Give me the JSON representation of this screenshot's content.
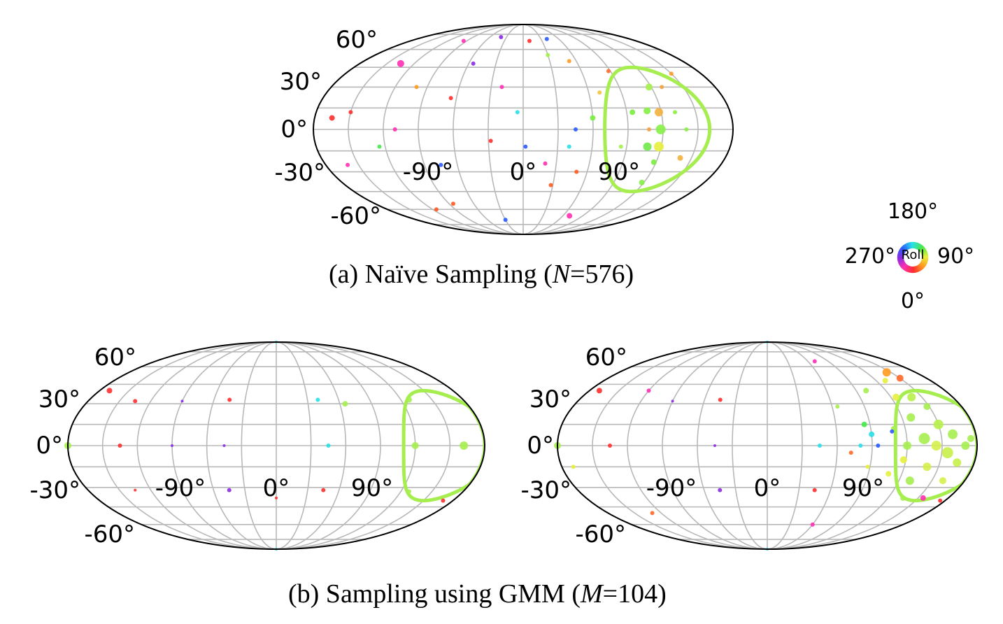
{
  "figure": {
    "caption_a": {
      "prefix": "(a) Naïve Sampling (",
      "var": "N",
      "suffix": "=576)"
    },
    "caption_b": {
      "prefix": "(b) Sampling using GMM (",
      "var": "M",
      "suffix": "=104)"
    }
  },
  "roll_legend": {
    "title": "Roll",
    "labels": {
      "top": "180°",
      "right": "90°",
      "bottom": "0°",
      "left": "270°"
    },
    "colors": [
      "#ff2d2d",
      "#ff9a1f",
      "#e6f03c",
      "#48e84c",
      "#27e0e8",
      "#2a5cff",
      "#8a2be2",
      "#ff2fb2"
    ]
  },
  "colors": {
    "circle": "#a6ee4f",
    "grid": "#b8b8b8",
    "outline": "#000000"
  },
  "chart_data": [
    {
      "id": "naive",
      "type": "scatter",
      "projection": "mollweide",
      "title": "(a) Naïve Sampling (N=576)",
      "lon_ticks": [
        "-90°",
        "0°",
        "90°"
      ],
      "lat_ticks": [
        "60°",
        "30°",
        "0°",
        "-30°",
        "-60°"
      ],
      "grid": true,
      "highlight_circle": {
        "lon": 115,
        "lat": 0,
        "radius_deg": 45,
        "color": "#a6ee4f"
      },
      "points": [
        {
          "lon": 95,
          "lat": 12,
          "size": 4,
          "color": "#7bed3f"
        },
        {
          "lon": 108,
          "lat": 13,
          "size": 5,
          "color": "#83ef43"
        },
        {
          "lon": 118,
          "lat": 12,
          "size": 6,
          "color": "#f2b03c"
        },
        {
          "lon": 108,
          "lat": 0,
          "size": 3,
          "color": "#f2a03c"
        },
        {
          "lon": 118,
          "lat": 0,
          "size": 7,
          "color": "#87ef48"
        },
        {
          "lon": 108,
          "lat": -12,
          "size": 6,
          "color": "#6fe84a"
        },
        {
          "lon": 118,
          "lat": -12,
          "size": 7,
          "color": "#e6f03c"
        },
        {
          "lon": 118,
          "lat": -23,
          "size": 4,
          "color": "#7bed3f"
        },
        {
          "lon": 118,
          "lat": -38,
          "size": 4,
          "color": "#83ef43"
        },
        {
          "lon": 118,
          "lat": 30,
          "size": 5,
          "color": "#a4f04a"
        },
        {
          "lon": 130,
          "lat": 30,
          "size": 3,
          "color": "#f2a03c"
        },
        {
          "lon": 132,
          "lat": 12,
          "size": 3,
          "color": "#8aef44"
        },
        {
          "lon": 140,
          "lat": 0,
          "size": 3,
          "color": "#8aef44"
        },
        {
          "lon": 140,
          "lat": -20,
          "size": 4,
          "color": "#f2b03c"
        },
        {
          "lon": 85,
          "lat": -12,
          "size": 3,
          "color": "#a4f04a"
        },
        {
          "lon": 88,
          "lat": 42,
          "size": 3,
          "color": "#ff6a2a"
        },
        {
          "lon": 70,
          "lat": 26,
          "size": 3,
          "color": "#f2c33c"
        },
        {
          "lon": 60,
          "lat": 8,
          "size": 4,
          "color": "#7bed3f"
        },
        {
          "lon": 45,
          "lat": 0,
          "size": 3,
          "color": "#2a5cff"
        },
        {
          "lon": 40,
          "lat": -12,
          "size": 3,
          "color": "#27e0e8"
        },
        {
          "lon": 50,
          "lat": -30,
          "size": 3,
          "color": "#ff5a1f"
        },
        {
          "lon": 28,
          "lat": -40,
          "size": 3,
          "color": "#ff5a1f"
        },
        {
          "lon": 52,
          "lat": 50,
          "size": 3,
          "color": "#ff9a1f"
        },
        {
          "lon": 30,
          "lat": 55,
          "size": 3,
          "color": "#a4f04a"
        },
        {
          "lon": 10,
          "lat": 68,
          "size": 3,
          "color": "#ff2d2d"
        },
        {
          "lon": -5,
          "lat": 12,
          "size": 3,
          "color": "#27e0e8"
        },
        {
          "lon": 2,
          "lat": -12,
          "size": 3,
          "color": "#2a5cff"
        },
        {
          "lon": 20,
          "lat": -24,
          "size": 3,
          "color": "#ff2fb2"
        },
        {
          "lon": -20,
          "lat": 30,
          "size": 3,
          "color": "#ff2fb2"
        },
        {
          "lon": -28,
          "lat": -8,
          "size": 3,
          "color": "#ff2d2d"
        },
        {
          "lon": -55,
          "lat": 48,
          "size": 3,
          "color": "#8a2be2"
        },
        {
          "lon": -65,
          "lat": 22,
          "size": 3,
          "color": "#ff2d2d"
        },
        {
          "lon": -75,
          "lat": -25,
          "size": 3,
          "color": "#2a5cff"
        },
        {
          "lon": -100,
          "lat": 30,
          "size": 3,
          "color": "#ff9a1f"
        },
        {
          "lon": -110,
          "lat": 0,
          "size": 3,
          "color": "#ff2fb2"
        },
        {
          "lon": -125,
          "lat": -12,
          "size": 3,
          "color": "#48e84c"
        },
        {
          "lon": -150,
          "lat": 12,
          "size": 3,
          "color": "#ff2d2d"
        },
        {
          "lon": -160,
          "lat": -25,
          "size": 3,
          "color": "#ff2fb2"
        },
        {
          "lon": -165,
          "lat": 8,
          "size": 4,
          "color": "#ff2d2d"
        },
        {
          "lon": -135,
          "lat": 48,
          "size": 5,
          "color": "#ff2fb2"
        },
        {
          "lon": -95,
          "lat": 68,
          "size": 3,
          "color": "#ff2fb2"
        },
        {
          "lon": -40,
          "lat": 72,
          "size": 3,
          "color": "#8a2be2"
        },
        {
          "lon": 40,
          "lat": 70,
          "size": 3,
          "color": "#2a5cff"
        },
        {
          "lon": -30,
          "lat": -70,
          "size": 3,
          "color": "#2a5cff"
        },
        {
          "lon": 70,
          "lat": -66,
          "size": 4,
          "color": "#ff2fb2"
        },
        {
          "lon": -115,
          "lat": -60,
          "size": 3,
          "color": "#ff5a1f"
        },
        {
          "lon": 150,
          "lat": 40,
          "size": 3,
          "color": "#ff9a1f"
        },
        {
          "lon": -85,
          "lat": -55,
          "size": 3,
          "color": "#ff5a1f"
        }
      ]
    },
    {
      "id": "gmm-left",
      "type": "scatter",
      "projection": "mollweide",
      "lon_ticks": [
        "-90°",
        "0°",
        "90°"
      ],
      "lat_ticks": [
        "60°",
        "30°",
        "0°",
        "-30°",
        "-60°"
      ],
      "grid": true,
      "highlight_circle": {
        "lon": 150,
        "lat": 0,
        "radius_deg": 40,
        "color": "#a6ee4f"
      },
      "points": [
        {
          "lon": 120,
          "lat": 0,
          "size": 5,
          "color": "#a6ee4f"
        },
        {
          "lon": 162,
          "lat": 0,
          "size": 6,
          "color": "#a6ee4f"
        },
        {
          "lon": 128,
          "lat": 33,
          "size": 4,
          "color": "#a6ee4f"
        },
        {
          "lon": 128,
          "lat": -33,
          "size": 3,
          "color": "#a6ee4f"
        },
        {
          "lon": 65,
          "lat": 30,
          "size": 4,
          "color": "#a6ee4f"
        },
        {
          "lon": 45,
          "lat": 0,
          "size": 3,
          "color": "#27e0e8"
        },
        {
          "lon": 40,
          "lat": 33,
          "size": 3,
          "color": "#27e0e8"
        },
        {
          "lon": 45,
          "lat": -32,
          "size": 3,
          "color": "#ff2d2d"
        },
        {
          "lon": -45,
          "lat": 33,
          "size": 3,
          "color": "#ff2d2d"
        },
        {
          "lon": -45,
          "lat": 0,
          "size": 2,
          "color": "#8a2be2"
        },
        {
          "lon": -45,
          "lat": -32,
          "size": 3,
          "color": "#8a2be2"
        },
        {
          "lon": -90,
          "lat": 0,
          "size": 2,
          "color": "#8a2be2"
        },
        {
          "lon": -90,
          "lat": 32,
          "size": 2,
          "color": "#8a2be2"
        },
        {
          "lon": -135,
          "lat": 0,
          "size": 3,
          "color": "#ff2d2d"
        },
        {
          "lon": -135,
          "lat": 32,
          "size": 3,
          "color": "#ff2d2d"
        },
        {
          "lon": -135,
          "lat": -32,
          "size": 2,
          "color": "#ff2d2d"
        },
        {
          "lon": -170,
          "lat": 40,
          "size": 4,
          "color": "#ff2d2d"
        },
        {
          "lon": -180,
          "lat": 0,
          "size": 5,
          "color": "#a6ee4f"
        },
        {
          "lon": 0,
          "lat": 90,
          "size": 2,
          "color": "#27e0e8"
        },
        {
          "lon": 0,
          "lat": -90,
          "size": 2,
          "color": "#27e0e8"
        },
        {
          "lon": 0,
          "lat": -38,
          "size": 2,
          "color": "#ff2d2d"
        },
        {
          "lon": 170,
          "lat": -40,
          "size": 3,
          "color": "#ff2d2d"
        }
      ]
    },
    {
      "id": "gmm-right",
      "type": "scatter",
      "projection": "mollweide",
      "lon_ticks": [
        "-90°",
        "0°",
        "90°"
      ],
      "lat_ticks": [
        "60°",
        "30°",
        "0°",
        "-30°",
        "-60°"
      ],
      "grid": true,
      "highlight_circle": {
        "lon": 150,
        "lat": 0,
        "radius_deg": 40,
        "color": "#a6ee4f"
      },
      "points": [
        {
          "lon": 120,
          "lat": 0,
          "size": 6,
          "color": "#a6ee4f"
        },
        {
          "lon": 135,
          "lat": 5,
          "size": 8,
          "color": "#a6ee4f"
        },
        {
          "lon": 145,
          "lat": 0,
          "size": 7,
          "color": "#d4f04a"
        },
        {
          "lon": 155,
          "lat": -5,
          "size": 8,
          "color": "#c8f048"
        },
        {
          "lon": 160,
          "lat": 8,
          "size": 7,
          "color": "#a6ee4f"
        },
        {
          "lon": 140,
          "lat": -15,
          "size": 6,
          "color": "#d4f04a"
        },
        {
          "lon": 150,
          "lat": 15,
          "size": 7,
          "color": "#b8f04a"
        },
        {
          "lon": 165,
          "lat": -12,
          "size": 6,
          "color": "#c8f048"
        },
        {
          "lon": 128,
          "lat": 20,
          "size": 6,
          "color": "#a6ee4f"
        },
        {
          "lon": 130,
          "lat": -25,
          "size": 6,
          "color": "#a6ee4f"
        },
        {
          "lon": 118,
          "lat": -10,
          "size": 5,
          "color": "#e6f03c"
        },
        {
          "lon": 170,
          "lat": 0,
          "size": 6,
          "color": "#a6ee4f"
        },
        {
          "lon": 175,
          "lat": 5,
          "size": 5,
          "color": "#a6ee4f"
        },
        {
          "lon": 148,
          "lat": 28,
          "size": 5,
          "color": "#a6ee4f"
        },
        {
          "lon": 140,
          "lat": 35,
          "size": 6,
          "color": "#b8f04a"
        },
        {
          "lon": 160,
          "lat": -25,
          "size": 5,
          "color": "#d4f04a"
        },
        {
          "lon": 125,
          "lat": 35,
          "size": 5,
          "color": "#e6f03c"
        },
        {
          "lon": 110,
          "lat": 12,
          "size": 4,
          "color": "#a6ee4f"
        },
        {
          "lon": 108,
          "lat": -20,
          "size": 4,
          "color": "#e6f03c"
        },
        {
          "lon": 135,
          "lat": -38,
          "size": 4,
          "color": "#a6ee4f"
        },
        {
          "lon": 155,
          "lat": -38,
          "size": 4,
          "color": "#ff2fb2"
        },
        {
          "lon": 150,
          "lat": 50,
          "size": 5,
          "color": "#ff6a2a"
        },
        {
          "lon": 145,
          "lat": 55,
          "size": 6,
          "color": "#ff9a1f"
        },
        {
          "lon": 130,
          "lat": 48,
          "size": 4,
          "color": "#e6f03c"
        },
        {
          "lon": 100,
          "lat": 40,
          "size": 4,
          "color": "#a6ee4f"
        },
        {
          "lon": 85,
          "lat": 15,
          "size": 4,
          "color": "#48e84c"
        },
        {
          "lon": 90,
          "lat": 8,
          "size": 4,
          "color": "#27e0e8"
        },
        {
          "lon": 95,
          "lat": 0,
          "size": 3,
          "color": "#2a5cff"
        },
        {
          "lon": 80,
          "lat": 0,
          "size": 3,
          "color": "#27e0e8"
        },
        {
          "lon": 72,
          "lat": -5,
          "size": 3,
          "color": "#ff6a2a"
        },
        {
          "lon": 88,
          "lat": -15,
          "size": 3,
          "color": "#e6f03c"
        },
        {
          "lon": 108,
          "lat": 10,
          "size": 3,
          "color": "#2a5cff"
        },
        {
          "lon": 65,
          "lat": 28,
          "size": 3,
          "color": "#a6ee4f"
        },
        {
          "lon": 45,
          "lat": 0,
          "size": 3,
          "color": "#27e0e8"
        },
        {
          "lon": 45,
          "lat": -32,
          "size": 3,
          "color": "#ff2d2d"
        },
        {
          "lon": -45,
          "lat": 33,
          "size": 3,
          "color": "#ff2d2d"
        },
        {
          "lon": -45,
          "lat": 0,
          "size": 2,
          "color": "#8a2be2"
        },
        {
          "lon": -45,
          "lat": -32,
          "size": 3,
          "color": "#8a2be2"
        },
        {
          "lon": -90,
          "lat": 32,
          "size": 2,
          "color": "#8a2be2"
        },
        {
          "lon": -135,
          "lat": 0,
          "size": 3,
          "color": "#ff2d2d"
        },
        {
          "lon": -170,
          "lat": 40,
          "size": 4,
          "color": "#ff2d2d"
        },
        {
          "lon": -180,
          "lat": 0,
          "size": 5,
          "color": "#a6ee4f"
        },
        {
          "lon": -170,
          "lat": -15,
          "size": 3,
          "color": "#e6f03c"
        },
        {
          "lon": -130,
          "lat": -50,
          "size": 3,
          "color": "#ff6a2a"
        },
        {
          "lon": -120,
          "lat": 40,
          "size": 3,
          "color": "#ff2fb2"
        },
        {
          "lon": 0,
          "lat": 90,
          "size": 2,
          "color": "#27e0e8"
        },
        {
          "lon": 0,
          "lat": -90,
          "size": 2,
          "color": "#27e0e8"
        },
        {
          "lon": 60,
          "lat": -60,
          "size": 3,
          "color": "#ff2fb2"
        },
        {
          "lon": 70,
          "lat": 65,
          "size": 3,
          "color": "#ff2fb2"
        },
        {
          "lon": 175,
          "lat": -40,
          "size": 3,
          "color": "#ff2d2d"
        }
      ]
    }
  ]
}
